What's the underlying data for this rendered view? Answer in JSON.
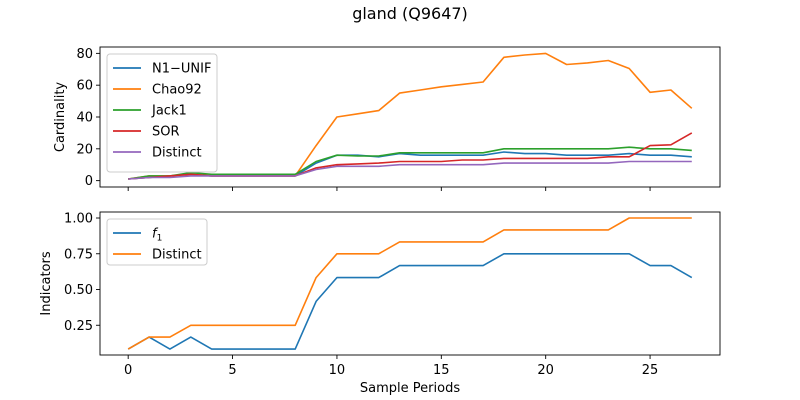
{
  "figure": {
    "title": "gland (Q9647)"
  },
  "chart_data": [
    {
      "type": "line",
      "ylabel": "Cardinality",
      "xlabel": "",
      "xlim": [
        -1.35,
        28.35
      ],
      "ylim": [
        -4,
        84
      ],
      "xticks": [
        0,
        5,
        10,
        15,
        20,
        25
      ],
      "yticks": [
        0,
        20,
        40,
        60,
        80
      ],
      "show_xtick_labels": false,
      "legend": "upper-left",
      "x": [
        0,
        1,
        2,
        3,
        4,
        5,
        6,
        7,
        8,
        9,
        10,
        11,
        12,
        13,
        14,
        15,
        16,
        17,
        18,
        19,
        20,
        21,
        22,
        23,
        24,
        25,
        26,
        27
      ],
      "series": [
        {
          "name": "N1−UNIF",
          "color": "#1f77b4",
          "values": [
            1,
            2,
            3,
            4,
            3,
            3,
            3,
            3,
            3,
            11,
            16,
            16,
            15,
            17,
            16,
            16,
            16,
            16,
            18,
            17,
            17,
            16,
            16,
            16,
            17,
            16,
            16,
            15
          ]
        },
        {
          "name": "Chao92",
          "color": "#ff7f0e",
          "values": [
            1,
            3,
            3,
            4,
            3,
            3,
            3,
            3,
            3,
            22,
            40,
            42,
            44,
            55,
            57,
            59,
            60.5,
            62,
            77.5,
            79,
            80,
            73,
            74,
            75.5,
            70.5,
            55.5,
            57,
            45.5
          ]
        },
        {
          "name": "Jack1",
          "color": "#2ca02c",
          "values": [
            1,
            3,
            3,
            5,
            4,
            4,
            4,
            4,
            4,
            12,
            16,
            15.5,
            15.5,
            17.5,
            17.5,
            17.5,
            17.5,
            17.5,
            20,
            20,
            20,
            20,
            20,
            20,
            21,
            20,
            20,
            19
          ]
        },
        {
          "name": "SOR",
          "color": "#d62728",
          "values": [
            1,
            2,
            3,
            4,
            3,
            3,
            3,
            3,
            3,
            8,
            10,
            10.5,
            11,
            12,
            12,
            12,
            13,
            13,
            14,
            14,
            14,
            14,
            14,
            15,
            15,
            22,
            22.5,
            30
          ]
        },
        {
          "name": "Distinct",
          "color": "#9467bd",
          "values": [
            1,
            2,
            2,
            3,
            3,
            3,
            3,
            3,
            3,
            7,
            9,
            9,
            9,
            10,
            10,
            10,
            10,
            10,
            11,
            11,
            11,
            11,
            11,
            11,
            12,
            12,
            12,
            12
          ]
        }
      ]
    },
    {
      "type": "line",
      "ylabel": "Indicators",
      "xlabel": "Sample Periods",
      "xlim": [
        -1.35,
        28.35
      ],
      "ylim": [
        0.042,
        1.042
      ],
      "xticks": [
        0,
        5,
        10,
        15,
        20,
        25
      ],
      "yticks": [
        0.25,
        0.5,
        0.75,
        1.0
      ],
      "ytick_labels": [
        "0.25",
        "0.50",
        "0.75",
        "1.00"
      ],
      "show_xtick_labels": true,
      "legend": "upper-left",
      "x": [
        0,
        1,
        2,
        3,
        4,
        5,
        6,
        7,
        8,
        9,
        10,
        11,
        12,
        13,
        14,
        15,
        16,
        17,
        18,
        19,
        20,
        21,
        22,
        23,
        24,
        25,
        26,
        27
      ],
      "series": [
        {
          "name": "f",
          "name_sub": "1",
          "color": "#1f77b4",
          "values": [
            0.083,
            0.167,
            0.083,
            0.167,
            0.083,
            0.083,
            0.083,
            0.083,
            0.083,
            0.417,
            0.583,
            0.583,
            0.583,
            0.667,
            0.667,
            0.667,
            0.667,
            0.667,
            0.75,
            0.75,
            0.75,
            0.75,
            0.75,
            0.75,
            0.75,
            0.667,
            0.667,
            0.583
          ]
        },
        {
          "name": "Distinct",
          "color": "#ff7f0e",
          "values": [
            0.083,
            0.167,
            0.167,
            0.25,
            0.25,
            0.25,
            0.25,
            0.25,
            0.25,
            0.583,
            0.75,
            0.75,
            0.75,
            0.833,
            0.833,
            0.833,
            0.833,
            0.833,
            0.917,
            0.917,
            0.917,
            0.917,
            0.917,
            0.917,
            1.0,
            1.0,
            1.0,
            1.0
          ]
        }
      ]
    }
  ]
}
